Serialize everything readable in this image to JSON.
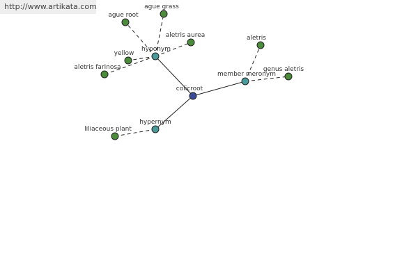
{
  "header": {
    "url": "http://www.artikata.com"
  },
  "nodes": [
    {
      "label": "colicroot"
    },
    {
      "label": "hyponym"
    },
    {
      "label": "member meronym"
    },
    {
      "label": "hypernym"
    },
    {
      "label": "ague root"
    },
    {
      "label": "ague grass"
    },
    {
      "label": "aletris aurea"
    },
    {
      "label": "yellow"
    },
    {
      "label": "aletris farinosa"
    },
    {
      "label": "aletris"
    },
    {
      "label": "genus aletris"
    },
    {
      "label": "liliaceous plant"
    }
  ]
}
